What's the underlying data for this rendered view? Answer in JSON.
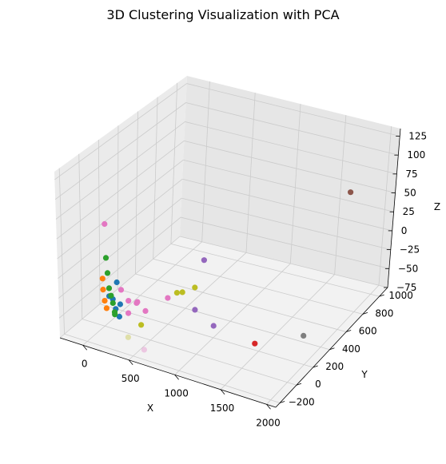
{
  "chart_data": {
    "type": "scatter",
    "projection": "3d",
    "title": "3D Clustering Visualization with PCA",
    "xlabel": "X",
    "ylabel": "Y",
    "zlabel": "Z",
    "xticks": [
      "0",
      "500",
      "1000",
      "1500",
      "2000"
    ],
    "yticks": [
      "−200",
      "0",
      "200",
      "400",
      "600",
      "800",
      "1000"
    ],
    "zticks": [
      "−75",
      "−50",
      "−25",
      "0",
      "25",
      "50",
      "75",
      "100",
      "125"
    ],
    "xlim": [
      -250,
      2100
    ],
    "ylim": [
      -250,
      1100
    ],
    "zlim": [
      -75,
      135
    ],
    "grid": true,
    "legend": "none",
    "series": [
      {
        "color": "#1f77b4",
        "points": [
          [
            90,
            -40,
            -30
          ],
          [
            110,
            -20,
            -35
          ],
          [
            150,
            -30,
            -45
          ],
          [
            95,
            40,
            -20
          ],
          [
            180,
            -10,
            -40
          ],
          [
            140,
            20,
            -60
          ]
        ]
      },
      {
        "color": "#ff7f0e",
        "points": [
          [
            60,
            -80,
            -5
          ],
          [
            55,
            -70,
            -20
          ],
          [
            60,
            -60,
            -35
          ],
          [
            70,
            -50,
            -45
          ]
        ]
      },
      {
        "color": "#2ca02c",
        "points": [
          [
            80,
            -60,
            20
          ],
          [
            85,
            -50,
            0
          ],
          [
            90,
            -40,
            -20
          ],
          [
            100,
            -30,
            -30
          ],
          [
            110,
            -20,
            -40
          ],
          [
            120,
            -10,
            -55
          ],
          [
            60,
            50,
            -60
          ]
        ]
      },
      {
        "color": "#d62728",
        "points": [
          [
            1500,
            150,
            -60
          ]
        ]
      },
      {
        "color": "#9467bd",
        "points": [
          [
            600,
            500,
            -20
          ],
          [
            700,
            300,
            -60
          ],
          [
            1000,
            200,
            -60
          ]
        ]
      },
      {
        "color": "#8c564b",
        "points": [
          [
            1700,
            1000,
            50
          ]
        ]
      },
      {
        "color": "#e377c2",
        "points": [
          [
            50,
            -40,
            60
          ],
          [
            200,
            -20,
            -20
          ],
          [
            250,
            10,
            -35
          ],
          [
            300,
            50,
            -40
          ],
          [
            260,
            100,
            -45
          ],
          [
            400,
            300,
            -55
          ],
          [
            300,
            150,
            -60
          ],
          [
            180,
            80,
            -60
          ]
        ]
      },
      {
        "color": "#7f7f7f",
        "points": [
          [
            1850,
            350,
            -60
          ]
        ]
      },
      {
        "color": "#bcbd22",
        "points": [
          [
            500,
            300,
            -45
          ],
          [
            540,
            320,
            -45
          ],
          [
            600,
            400,
            -45
          ],
          [
            320,
            80,
            -70
          ]
        ]
      }
    ],
    "faded_points": [
      [
        640,
        -220,
        -60
      ],
      [
        400,
        -150,
        -60
      ]
    ]
  }
}
